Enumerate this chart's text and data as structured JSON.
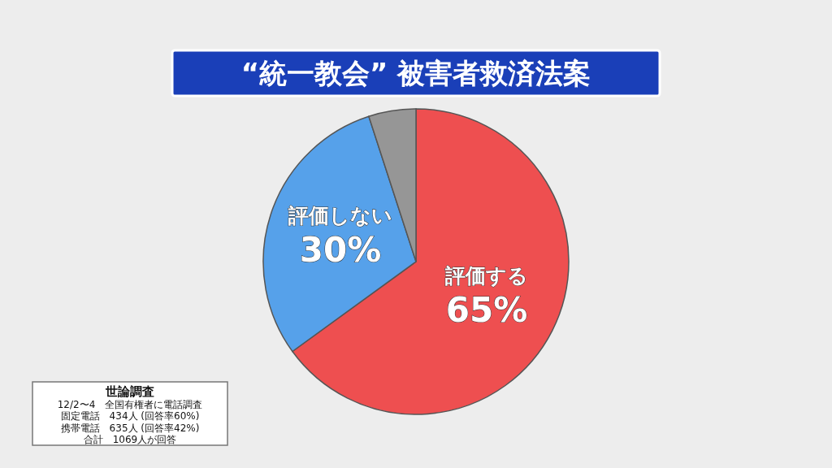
{
  "chart_data": {
    "type": "pie",
    "title": "“統一教会” 被害者救済法案",
    "categories": [
      "評価する",
      "評価しない",
      null
    ],
    "values": [
      65,
      30,
      5
    ],
    "value_labels": [
      "65%",
      "30%",
      null
    ],
    "colors": [
      "#ee4f50",
      "#56a1ea",
      "#969696"
    ],
    "annotations": [
      "世論調査",
      "12/2〜4　全国有権者に電話調査",
      "固定電話　434人 (回答率60%)",
      "携帯電話　635人 (回答率42%)",
      "合計　1069人が回答"
    ]
  }
}
